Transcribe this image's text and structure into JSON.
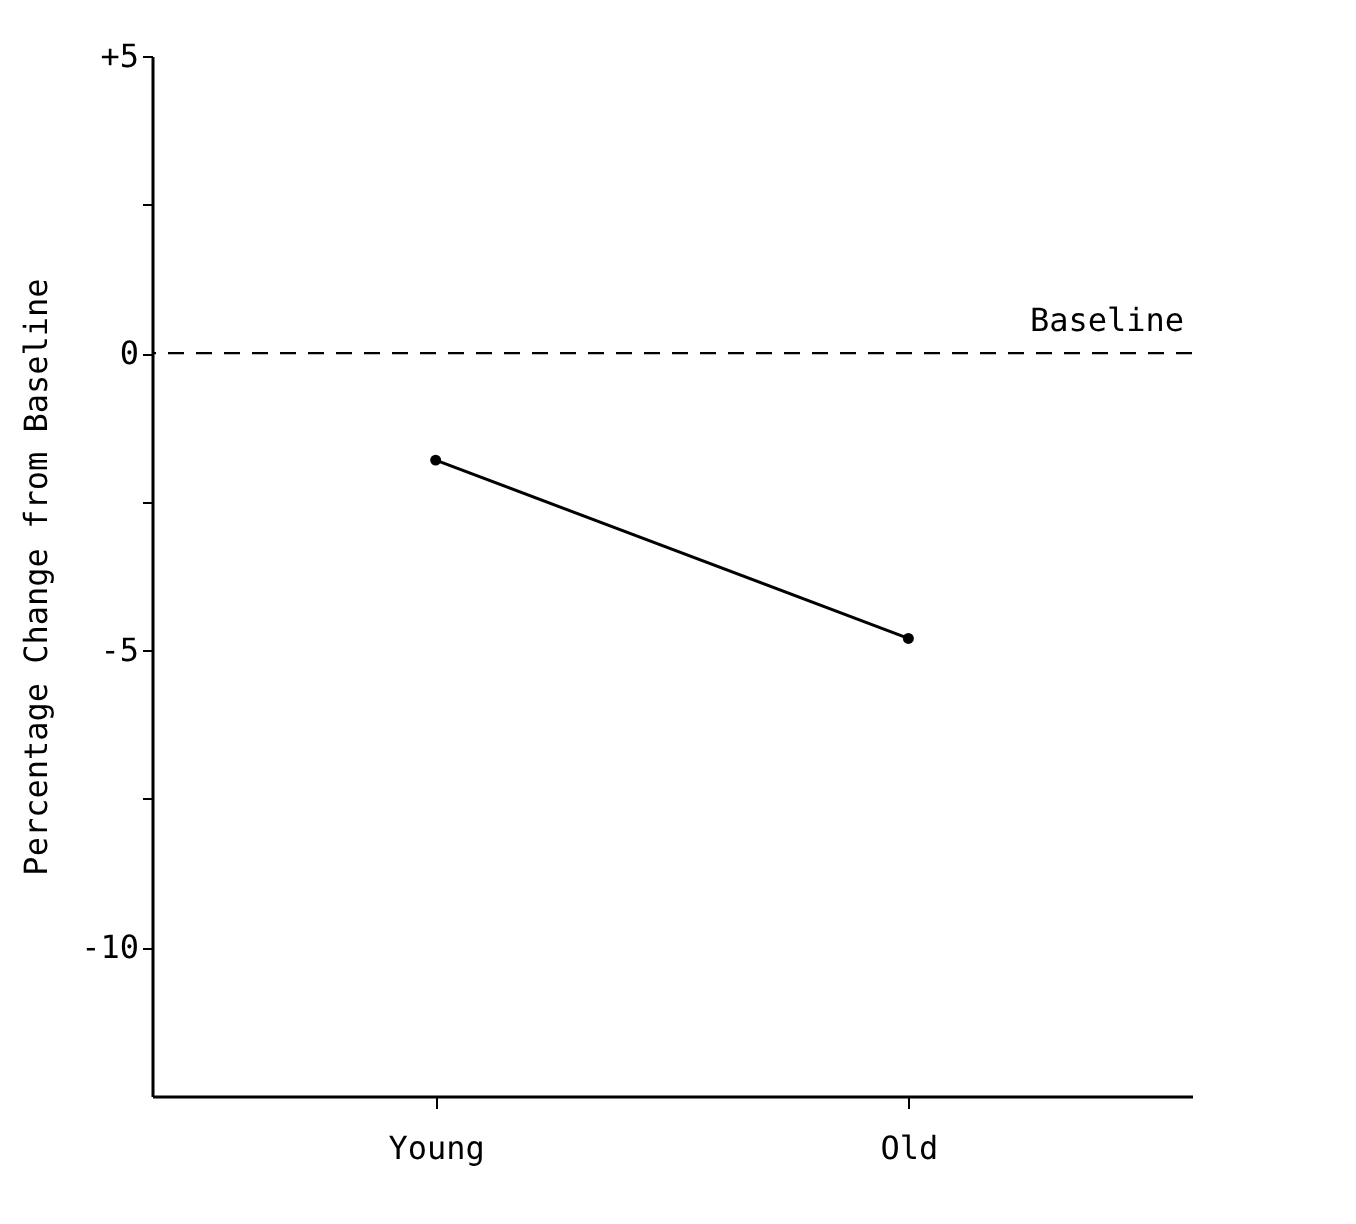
{
  "chart_data": {
    "type": "line",
    "ylabel": "Percentage Change from Baseline",
    "categories": [
      "Young",
      "Old"
    ],
    "series": [
      {
        "color": "#000000",
        "values": [
          -1.8,
          -4.8
        ]
      }
    ],
    "marker": "circle",
    "line_style": "solid",
    "ylim": [
      -12.5,
      5
    ],
    "yticks": [
      {
        "value": 5,
        "label": "+5"
      },
      {
        "value": 2.5,
        "label": null
      },
      0,
      {
        "value": -2.5,
        "label": null
      },
      -5,
      {
        "value": -7.5,
        "label": null
      },
      -10
    ],
    "ref_lines": [
      {
        "axis": "y",
        "value": 0,
        "label": "Baseline",
        "line_style": "dashed"
      }
    ],
    "grid": false
  }
}
